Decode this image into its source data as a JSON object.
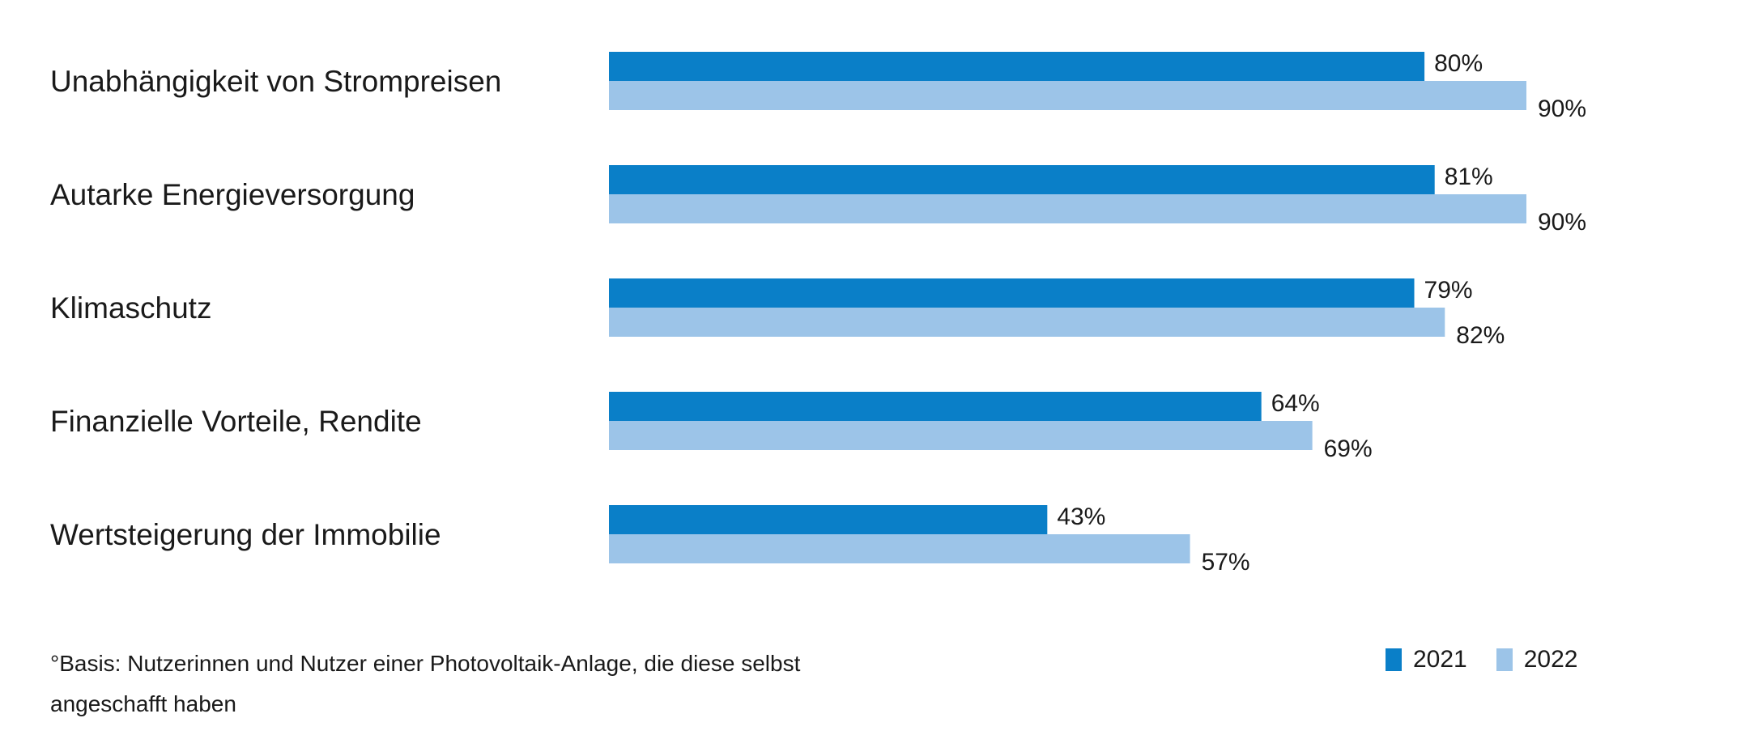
{
  "chart_data": {
    "type": "bar",
    "orientation": "horizontal",
    "categories": [
      "Unabhängigkeit von Strompreisen",
      "Autarke Energieversorgung",
      "Klimaschutz",
      "Finanzielle Vorteile, Rendite",
      "Wertsteigerung der Immobilie"
    ],
    "series": [
      {
        "name": "2021",
        "color": "#0a7fc8",
        "values": [
          80,
          81,
          79,
          64,
          43
        ],
        "labels": [
          "80%",
          "81%",
          "79%",
          "64%",
          "43%"
        ]
      },
      {
        "name": "2022",
        "color": "#9cc4e8",
        "values": [
          90,
          90,
          82,
          69,
          57
        ],
        "labels": [
          "90%",
          "90%",
          "82%",
          "69%",
          "57%"
        ]
      }
    ],
    "xlim": [
      0,
      90
    ],
    "unit": "%",
    "grid": false,
    "legend": "bottom-right"
  },
  "footnote": {
    "line1": "°Basis: Nutzerinnen und Nutzer einer Photovoltaik-Anlage, die diese selbst",
    "line2": "angeschafft haben"
  },
  "legend": {
    "items": [
      "2021",
      "2022"
    ]
  }
}
